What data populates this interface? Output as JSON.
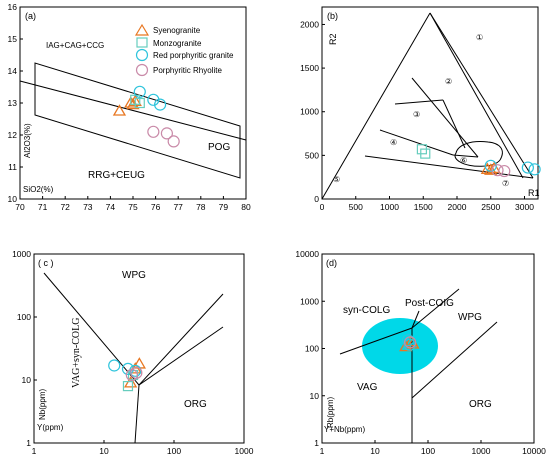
{
  "colors": {
    "syenogranite": "#e87722",
    "monzogranite": "#66cdbd",
    "red_porphyritic_granite": "#2ec4dc",
    "porphyritic_rhyolite": "#c98aa8",
    "highlight_fill": "#00d8e8"
  },
  "chart_data": [
    {
      "type": "scatter",
      "panel": "(a)",
      "xlabel": "SiO2(%)",
      "ylabel": "Al2O3(%)",
      "xlim": [
        70,
        80
      ],
      "ylim": [
        10,
        16
      ],
      "xticks": [
        70,
        71,
        72,
        73,
        74,
        75,
        76,
        77,
        78,
        79,
        80
      ],
      "yticks": [
        10,
        11,
        12,
        13,
        14,
        15,
        16
      ],
      "field_labels": [
        "IAG+CAG+CCG",
        "POG",
        "RRG+CEUG"
      ],
      "legend": [
        "Syenogranite",
        "Monzogranite",
        "Red porphyritic granite",
        "Porphyritic Rhyolite"
      ],
      "legend_position": "top-right",
      "series": [
        {
          "name": "Syenogranite",
          "points": [
            [
              74.4,
              12.75
            ],
            [
              74.9,
              13.0
            ],
            [
              75.1,
              13.05
            ],
            [
              75.0,
              12.95
            ]
          ]
        },
        {
          "name": "Monzogranite",
          "points": [
            [
              75.1,
              13.1
            ],
            [
              75.3,
              13.0
            ]
          ]
        },
        {
          "name": "Red porphyritic granite",
          "points": [
            [
              75.3,
              13.35
            ],
            [
              75.9,
              13.1
            ],
            [
              76.2,
              12.95
            ]
          ]
        },
        {
          "name": "Porphyritic Rhyolite",
          "points": [
            [
              75.9,
              12.1
            ],
            [
              76.5,
              12.05
            ],
            [
              76.8,
              11.8
            ]
          ]
        }
      ]
    },
    {
      "type": "scatter",
      "panel": "(b)",
      "xlabel": "R1",
      "ylabel": "R2",
      "xlim": [
        0,
        3200
      ],
      "ylim": [
        0,
        2200
      ],
      "xticks": [
        0,
        500,
        1000,
        1500,
        2000,
        2500,
        3000
      ],
      "yticks": [
        0,
        500,
        1000,
        1500,
        2000
      ],
      "field_labels": [
        "①",
        "②",
        "③",
        "④",
        "⑤",
        "⑥",
        "⑦"
      ],
      "series": [
        {
          "name": "Syenogranite",
          "points": [
            [
              2450,
              340
            ],
            [
              2500,
              330
            ],
            [
              2550,
              350
            ]
          ]
        },
        {
          "name": "Monzogranite",
          "points": [
            [
              1480,
              570
            ],
            [
              1530,
              520
            ]
          ]
        },
        {
          "name": "Red porphyritic granite",
          "points": [
            [
              2500,
              380
            ],
            [
              3050,
              360
            ],
            [
              3150,
              340
            ]
          ]
        },
        {
          "name": "Porphyritic Rhyolite",
          "points": [
            [
              2600,
              330
            ],
            [
              2700,
              320
            ]
          ]
        }
      ]
    },
    {
      "type": "scatter",
      "panel": "( c )",
      "xlabel": "Y(ppm)",
      "ylabel": "Nb(ppm)",
      "xscale": "log",
      "yscale": "log",
      "xlim": [
        1,
        1000
      ],
      "ylim": [
        1,
        1000
      ],
      "xticks": [
        1,
        10,
        100,
        1000
      ],
      "yticks": [
        1,
        10,
        100,
        1000
      ],
      "field_labels": [
        "WPG",
        "VAG+syn-COLG",
        "ORG"
      ],
      "series": [
        {
          "name": "Syenogranite",
          "points": [
            [
              32,
              18
            ],
            [
              28,
              15
            ],
            [
              24,
              9
            ]
          ]
        },
        {
          "name": "Monzogranite",
          "points": [
            [
              22,
              8
            ],
            [
              26,
              12
            ]
          ]
        },
        {
          "name": "Red porphyritic granite",
          "points": [
            [
              14,
              17
            ],
            [
              22,
              15
            ],
            [
              28,
              14
            ]
          ]
        },
        {
          "name": "Porphyritic Rhyolite",
          "points": [
            [
              25,
              12
            ],
            [
              29,
              13
            ]
          ]
        }
      ]
    },
    {
      "type": "scatter",
      "panel": "(d)",
      "xlabel": "Y+Nb(ppm)",
      "ylabel": "Rb(ppm)",
      "xscale": "log",
      "yscale": "log",
      "xlim": [
        1,
        10000
      ],
      "ylim": [
        1,
        10000
      ],
      "xticks": [
        1,
        10,
        100,
        1000,
        10000
      ],
      "yticks": [
        1,
        10,
        100,
        1000,
        10000
      ],
      "field_labels": [
        "Post-COIG",
        "syn-COLG",
        "WPG",
        "VAG",
        "ORG"
      ],
      "series": [
        {
          "name": "Syenogranite",
          "points": [
            [
              38,
              110
            ],
            [
              48,
              140
            ],
            [
              52,
              125
            ]
          ]
        },
        {
          "name": "Red porphyritic granite",
          "points": [
            [
              42,
              150
            ],
            [
              45,
              120
            ]
          ]
        },
        {
          "name": "Porphyritic Rhyolite",
          "points": [
            [
              46,
              135
            ]
          ]
        }
      ]
    }
  ]
}
